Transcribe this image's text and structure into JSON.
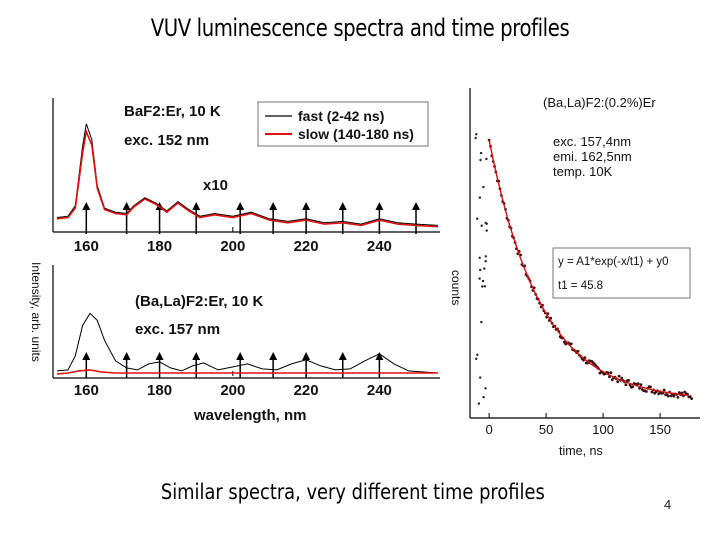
{
  "slide": {
    "title": "VUV luminescence spectra and time profiles",
    "caption": "Similar spectra, very different time profiles",
    "page_number": "4"
  },
  "chart_data": [
    {
      "type": "line",
      "panel": "top-spectrum",
      "label": "BaF2:Er, 10 K",
      "excitation": "exc. 152 nm",
      "annotation": "x10",
      "xlim": [
        152,
        256
      ],
      "ylim": [
        0,
        1
      ],
      "x_ticks": [
        160,
        180,
        200,
        220,
        240
      ],
      "legend": {
        "position": "top-right",
        "entries": [
          "fast (2-42 ns)",
          "slow (140-180 ns)"
        ]
      },
      "arrows_x": [
        160,
        171,
        180,
        190,
        202,
        211,
        220,
        230,
        240,
        250
      ],
      "series": [
        {
          "name": "fast (2-42 ns)",
          "color": "#000000",
          "x": [
            152,
            155,
            157,
            159,
            160,
            161.5,
            163,
            165,
            168,
            171,
            173,
            176,
            179,
            182,
            185,
            188,
            191,
            195,
            200,
            205,
            210,
            215,
            220,
            225,
            230,
            235,
            240,
            245,
            250,
            256
          ],
          "y": [
            0.11,
            0.12,
            0.2,
            0.65,
            0.82,
            0.7,
            0.35,
            0.18,
            0.15,
            0.14,
            0.2,
            0.26,
            0.22,
            0.16,
            0.23,
            0.17,
            0.12,
            0.14,
            0.12,
            0.15,
            0.1,
            0.08,
            0.1,
            0.07,
            0.08,
            0.06,
            0.1,
            0.07,
            0.06,
            0.05
          ]
        },
        {
          "name": "slow (140-180 ns)",
          "color": "#e01010",
          "x": [
            152,
            155,
            157,
            159,
            160,
            161.5,
            163,
            165,
            168,
            171,
            173,
            176,
            179,
            182,
            185,
            188,
            191,
            195,
            200,
            205,
            210,
            215,
            220,
            225,
            230,
            235,
            240,
            245,
            250,
            256
          ],
          "y": [
            0.1,
            0.11,
            0.18,
            0.6,
            0.76,
            0.66,
            0.33,
            0.17,
            0.14,
            0.13,
            0.19,
            0.25,
            0.21,
            0.15,
            0.22,
            0.16,
            0.11,
            0.13,
            0.11,
            0.14,
            0.09,
            0.07,
            0.09,
            0.06,
            0.07,
            0.05,
            0.09,
            0.06,
            0.05,
            0.04
          ]
        }
      ]
    },
    {
      "type": "line",
      "panel": "bottom-spectrum",
      "label": "(Ba,La)F2:Er, 10 K",
      "excitation": "exc. 157 nm",
      "xlabel": "wavelength, nm",
      "ylabel": "Intensity, arb. units",
      "xlim": [
        152,
        256
      ],
      "ylim": [
        0,
        1
      ],
      "x_ticks": [
        160,
        180,
        200,
        220,
        240
      ],
      "arrows_x": [
        160,
        171,
        180,
        190,
        202,
        211,
        220,
        230,
        240
      ],
      "series": [
        {
          "name": "fast",
          "color": "#000000",
          "x": [
            152,
            155,
            157,
            159,
            161,
            163,
            165,
            168,
            171,
            174,
            177,
            180,
            183,
            186,
            189,
            192,
            196,
            200,
            204,
            208,
            212,
            216,
            220,
            224,
            228,
            232,
            236,
            240,
            244,
            248,
            252,
            256
          ],
          "y": [
            0.05,
            0.06,
            0.2,
            0.5,
            0.62,
            0.55,
            0.35,
            0.15,
            0.08,
            0.06,
            0.12,
            0.14,
            0.08,
            0.05,
            0.1,
            0.13,
            0.06,
            0.09,
            0.12,
            0.07,
            0.06,
            0.12,
            0.16,
            0.1,
            0.06,
            0.07,
            0.15,
            0.22,
            0.12,
            0.05,
            0.04,
            0.03
          ]
        },
        {
          "name": "slow",
          "color": "#e01010",
          "x": [
            152,
            155,
            158,
            161,
            164,
            168,
            172,
            176,
            180,
            190,
            200,
            210,
            220,
            230,
            240,
            250,
            256
          ],
          "y": [
            0.02,
            0.03,
            0.05,
            0.06,
            0.04,
            0.03,
            0.03,
            0.03,
            0.03,
            0.03,
            0.03,
            0.03,
            0.03,
            0.03,
            0.03,
            0.03,
            0.03
          ]
        }
      ]
    },
    {
      "type": "scatter",
      "panel": "decay-curve",
      "label": "(Ba,La)F2:(0.2%)Er",
      "conditions": [
        "exc. 157,4nm",
        "emi. 162,5nm",
        "temp. 10K"
      ],
      "fit_formula": "y = A1*exp(-x/t1) + y0",
      "fit_result": "t1 = 45.8",
      "xlabel": "time, ns",
      "ylabel": "counts",
      "xlim": [
        -15,
        185
      ],
      "ylim": [
        0,
        1
      ],
      "x_ticks": [
        0,
        50,
        100,
        150
      ],
      "tau": 45.8,
      "y0": 0.04
    }
  ]
}
